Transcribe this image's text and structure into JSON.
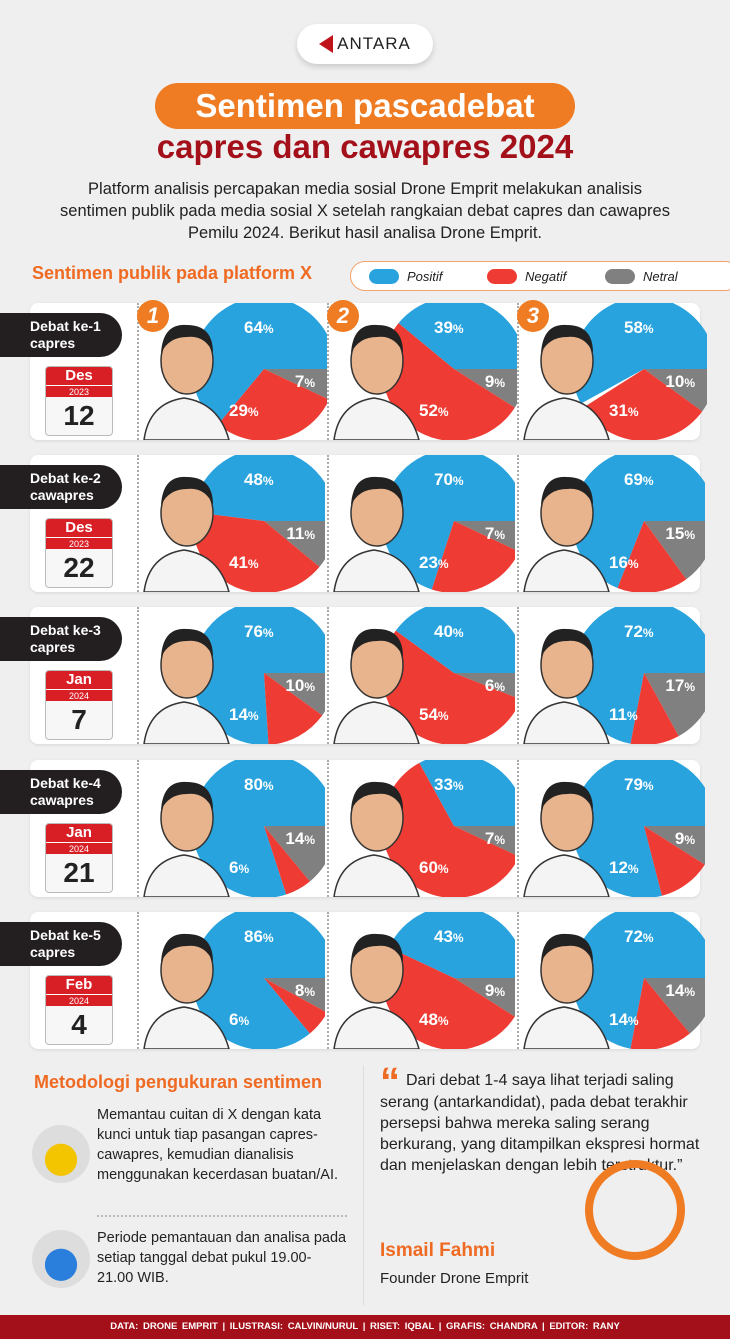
{
  "brand": "ANTARA",
  "title_line1": "Sentimen pascadebat",
  "title_line2": "capres dan cawapres 2024",
  "intro": "Platform analisis percapakan media sosial Drone Emprit melakukan analisis sentimen publik pada media sosial X setelah rangkaian debat capres dan cawapres Pemilu 2024. Berikut hasil analisa Drone Emprit.",
  "subtitle": "Sentimen publik pada platform X",
  "legend": [
    {
      "label": "Positif",
      "color": "#29a3de"
    },
    {
      "label": "Negatif",
      "color": "#ee3b33"
    },
    {
      "label": "Netral",
      "color": "#808080"
    }
  ],
  "candidate_numbers": [
    "1",
    "2",
    "3"
  ],
  "chart_data": {
    "type": "pie",
    "series_order": [
      "Positif",
      "Negatif",
      "Netral"
    ],
    "unit": "%",
    "rows": [
      {
        "debate": "Debat ke-1",
        "type": "capres",
        "month": "Des",
        "year": "2023",
        "day": "12",
        "pies": [
          [
            64,
            29,
            7
          ],
          [
            39,
            52,
            9
          ],
          [
            58,
            31,
            10
          ]
        ]
      },
      {
        "debate": "Debat ke-2",
        "type": "cawapres",
        "month": "Des",
        "year": "2023",
        "day": "22",
        "pies": [
          [
            48,
            41,
            11
          ],
          [
            70,
            23,
            7
          ],
          [
            69,
            16,
            15
          ]
        ]
      },
      {
        "debate": "Debat ke-3",
        "type": "capres",
        "month": "Jan",
        "year": "2024",
        "day": "7",
        "pies": [
          [
            76,
            14,
            10
          ],
          [
            40,
            54,
            6
          ],
          [
            72,
            11,
            17
          ]
        ]
      },
      {
        "debate": "Debat ke-4",
        "type": "cawapres",
        "month": "Jan",
        "year": "2024",
        "day": "21",
        "pies": [
          [
            80,
            6,
            14
          ],
          [
            33,
            60,
            7
          ],
          [
            79,
            12,
            9
          ]
        ]
      },
      {
        "debate": "Debat ke-5",
        "type": "capres",
        "month": "Feb",
        "year": "2024",
        "day": "4",
        "pies": [
          [
            86,
            6,
            8
          ],
          [
            43,
            48,
            9
          ],
          [
            72,
            14,
            14
          ]
        ]
      }
    ]
  },
  "methodology": {
    "title": "Metodologi pengukuran sentimen",
    "items": [
      "Memantau cuitan di X dengan kata kunci untuk tiap pasangan capres-cawapres, kemudian dianalisis menggunakan kecerdasan buatan/AI.",
      "Periode pemantauan dan analisa pada setiap tanggal debat pukul 19.00-21.00 WIB."
    ]
  },
  "quote": {
    "mark": "“",
    "text": "Dari debat 1-4 saya lihat terjadi saling serang (antarkandidat), pada debat terakhir persepsi bahwa mereka saling serang berkurang, yang ditampilkan ekspresi hormat dan menjelaskan dengan lebih terstruktur.”",
    "name": "Ismail Fahmi",
    "role": "Founder Drone Emprit"
  },
  "footer": "DATA: DRONE EMPRIT   |   ILUSTRASI: CALVIN/NURUL   |   RISET: IQBAL   |   GRAFIS: CHANDRA   |   EDITOR: RANY"
}
